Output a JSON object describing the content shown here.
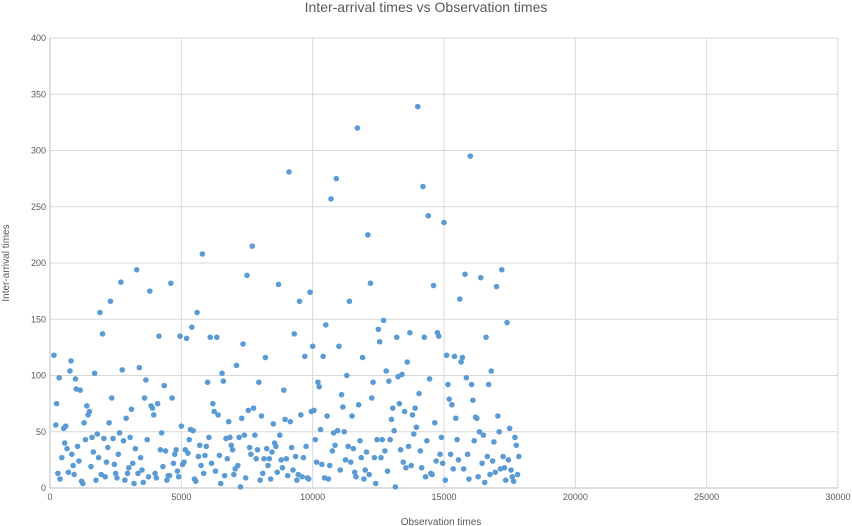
{
  "chart_data": {
    "type": "scatter",
    "title": "Inter-arrival times vs Observation times",
    "xlabel": "Observation times",
    "ylabel": "Inter-arrival times",
    "xlim": [
      0,
      30000
    ],
    "ylim": [
      0,
      400
    ],
    "x_ticks": [
      0,
      5000,
      10000,
      15000,
      20000,
      25000,
      30000
    ],
    "y_ticks": [
      0,
      50,
      100,
      150,
      200,
      250,
      300,
      350,
      400
    ],
    "grid": true,
    "legend": "none",
    "marker_color": "#5b9bd5",
    "points": [
      [
        150,
        118
      ],
      [
        220,
        56
      ],
      [
        250,
        75
      ],
      [
        300,
        13
      ],
      [
        350,
        98
      ],
      [
        380,
        8
      ],
      [
        450,
        27
      ],
      [
        520,
        53
      ],
      [
        560,
        40
      ],
      [
        600,
        55
      ],
      [
        650,
        35
      ],
      [
        700,
        14
      ],
      [
        760,
        104
      ],
      [
        800,
        113
      ],
      [
        830,
        30
      ],
      [
        880,
        20
      ],
      [
        920,
        12
      ],
      [
        970,
        97
      ],
      [
        1000,
        88
      ],
      [
        1050,
        37
      ],
      [
        1100,
        24
      ],
      [
        1150,
        87
      ],
      [
        1200,
        6
      ],
      [
        1250,
        4
      ],
      [
        1300,
        58
      ],
      [
        1350,
        43
      ],
      [
        1400,
        73
      ],
      [
        1450,
        65
      ],
      [
        1500,
        68
      ],
      [
        1560,
        19
      ],
      [
        1600,
        45
      ],
      [
        1650,
        32
      ],
      [
        1700,
        102
      ],
      [
        1750,
        7
      ],
      [
        1800,
        48
      ],
      [
        1850,
        27
      ],
      [
        1900,
        156
      ],
      [
        1950,
        12
      ],
      [
        2000,
        137
      ],
      [
        2050,
        44
      ],
      [
        2100,
        10
      ],
      [
        2150,
        23
      ],
      [
        2200,
        36
      ],
      [
        2250,
        58
      ],
      [
        2300,
        166
      ],
      [
        2350,
        80
      ],
      [
        2400,
        44
      ],
      [
        2450,
        21
      ],
      [
        2500,
        13
      ],
      [
        2550,
        9
      ],
      [
        2600,
        30
      ],
      [
        2650,
        49
      ],
      [
        2700,
        183
      ],
      [
        2750,
        105
      ],
      [
        2800,
        42
      ],
      [
        2850,
        7
      ],
      [
        2900,
        62
      ],
      [
        2950,
        13
      ],
      [
        3000,
        18
      ],
      [
        3050,
        45
      ],
      [
        3100,
        70
      ],
      [
        3150,
        22
      ],
      [
        3200,
        4
      ],
      [
        3250,
        35
      ],
      [
        3300,
        194
      ],
      [
        3350,
        13
      ],
      [
        3400,
        107
      ],
      [
        3450,
        27
      ],
      [
        3500,
        16
      ],
      [
        3550,
        5
      ],
      [
        3600,
        80
      ],
      [
        3650,
        96
      ],
      [
        3700,
        43
      ],
      [
        3750,
        10
      ],
      [
        3800,
        175
      ],
      [
        3850,
        73
      ],
      [
        3900,
        71
      ],
      [
        3950,
        65
      ],
      [
        4000,
        13
      ],
      [
        4050,
        9
      ],
      [
        4100,
        75
      ],
      [
        4150,
        135
      ],
      [
        4200,
        34
      ],
      [
        4250,
        49
      ],
      [
        4300,
        19
      ],
      [
        4350,
        91
      ],
      [
        4400,
        33
      ],
      [
        4450,
        7
      ],
      [
        4500,
        11
      ],
      [
        4550,
        11
      ],
      [
        4600,
        182
      ],
      [
        4650,
        80
      ],
      [
        4700,
        22
      ],
      [
        4750,
        30
      ],
      [
        4800,
        34
      ],
      [
        4850,
        15
      ],
      [
        4900,
        10
      ],
      [
        4950,
        135
      ],
      [
        5000,
        55
      ],
      [
        5050,
        21
      ],
      [
        5100,
        23
      ],
      [
        5150,
        34
      ],
      [
        5200,
        133
      ],
      [
        5250,
        31
      ],
      [
        5300,
        43
      ],
      [
        5350,
        52
      ],
      [
        5400,
        143
      ],
      [
        5450,
        51
      ],
      [
        5500,
        8
      ],
      [
        5550,
        6
      ],
      [
        5600,
        156
      ],
      [
        5650,
        28
      ],
      [
        5700,
        38
      ],
      [
        5750,
        20
      ],
      [
        5800,
        208
      ],
      [
        5850,
        13
      ],
      [
        5900,
        29
      ],
      [
        5950,
        37
      ],
      [
        6000,
        94
      ],
      [
        6050,
        45
      ],
      [
        6100,
        134
      ],
      [
        6150,
        22
      ],
      [
        6200,
        75
      ],
      [
        6250,
        68
      ],
      [
        6300,
        15
      ],
      [
        6350,
        134
      ],
      [
        6400,
        65
      ],
      [
        6450,
        29
      ],
      [
        6500,
        4
      ],
      [
        6550,
        102
      ],
      [
        6600,
        95
      ],
      [
        6650,
        11
      ],
      [
        6700,
        44
      ],
      [
        6750,
        26
      ],
      [
        6800,
        59
      ],
      [
        6850,
        45
      ],
      [
        6900,
        38
      ],
      [
        6950,
        34
      ],
      [
        7000,
        12
      ],
      [
        7050,
        17
      ],
      [
        7100,
        109
      ],
      [
        7150,
        20
      ],
      [
        7200,
        45
      ],
      [
        7250,
        1
      ],
      [
        7300,
        62
      ],
      [
        7350,
        128
      ],
      [
        7400,
        47
      ],
      [
        7450,
        9
      ],
      [
        7500,
        189
      ],
      [
        7550,
        69
      ],
      [
        7600,
        36
      ],
      [
        7650,
        30
      ],
      [
        7700,
        215
      ],
      [
        7750,
        71
      ],
      [
        7800,
        47
      ],
      [
        7850,
        26
      ],
      [
        7900,
        34
      ],
      [
        7950,
        94
      ],
      [
        8000,
        7
      ],
      [
        8050,
        64
      ],
      [
        8100,
        13
      ],
      [
        8150,
        26
      ],
      [
        8200,
        116
      ],
      [
        8250,
        35
      ],
      [
        8300,
        20
      ],
      [
        8350,
        26
      ],
      [
        8400,
        8
      ],
      [
        8450,
        32
      ],
      [
        8500,
        57
      ],
      [
        8550,
        40
      ],
      [
        8600,
        37
      ],
      [
        8650,
        14
      ],
      [
        8700,
        181
      ],
      [
        8750,
        47
      ],
      [
        8800,
        25
      ],
      [
        8850,
        18
      ],
      [
        8900,
        87
      ],
      [
        8950,
        61
      ],
      [
        9000,
        26
      ],
      [
        9050,
        11
      ],
      [
        9100,
        281
      ],
      [
        9150,
        59
      ],
      [
        9200,
        36
      ],
      [
        9250,
        16
      ],
      [
        9300,
        137
      ],
      [
        9350,
        28
      ],
      [
        9400,
        7
      ],
      [
        9450,
        12
      ],
      [
        9500,
        166
      ],
      [
        9550,
        65
      ],
      [
        9600,
        10
      ],
      [
        9650,
        27
      ],
      [
        9700,
        117
      ],
      [
        9750,
        37
      ],
      [
        9800,
        9
      ],
      [
        9850,
        8
      ],
      [
        9900,
        174
      ],
      [
        9950,
        68
      ],
      [
        10000,
        126
      ],
      [
        10050,
        69
      ],
      [
        10100,
        43
      ],
      [
        10150,
        23
      ],
      [
        10200,
        94
      ],
      [
        10250,
        90
      ],
      [
        10300,
        52
      ],
      [
        10350,
        21
      ],
      [
        10400,
        117
      ],
      [
        10450,
        9
      ],
      [
        10500,
        145
      ],
      [
        10550,
        64
      ],
      [
        10600,
        8
      ],
      [
        10650,
        20
      ],
      [
        10700,
        257
      ],
      [
        10750,
        33
      ],
      [
        10800,
        49
      ],
      [
        10850,
        38
      ],
      [
        10900,
        275
      ],
      [
        10950,
        51
      ],
      [
        11000,
        126
      ],
      [
        11050,
        16
      ],
      [
        11100,
        83
      ],
      [
        11150,
        72
      ],
      [
        11200,
        50
      ],
      [
        11250,
        25
      ],
      [
        11300,
        100
      ],
      [
        11350,
        37
      ],
      [
        11400,
        166
      ],
      [
        11450,
        23
      ],
      [
        11500,
        64
      ],
      [
        11550,
        35
      ],
      [
        11600,
        14
      ],
      [
        11650,
        10
      ],
      [
        11700,
        320
      ],
      [
        11750,
        74
      ],
      [
        11800,
        42
      ],
      [
        11850,
        27
      ],
      [
        11900,
        116
      ],
      [
        11950,
        8
      ],
      [
        12000,
        16
      ],
      [
        12050,
        32
      ],
      [
        12100,
        225
      ],
      [
        12150,
        12
      ],
      [
        12200,
        182
      ],
      [
        12250,
        80
      ],
      [
        12300,
        94
      ],
      [
        12350,
        27
      ],
      [
        12400,
        4
      ],
      [
        12450,
        43
      ],
      [
        12500,
        141
      ],
      [
        12550,
        130
      ],
      [
        12600,
        27
      ],
      [
        12650,
        43
      ],
      [
        12700,
        149
      ],
      [
        12750,
        33
      ],
      [
        12800,
        104
      ],
      [
        12850,
        15
      ],
      [
        12900,
        95
      ],
      [
        12950,
        43
      ],
      [
        13000,
        61
      ],
      [
        13050,
        71
      ],
      [
        13100,
        51
      ],
      [
        13150,
        1
      ],
      [
        13200,
        134
      ],
      [
        13250,
        99
      ],
      [
        13300,
        75
      ],
      [
        13350,
        34
      ],
      [
        13400,
        101
      ],
      [
        13450,
        23
      ],
      [
        13500,
        68
      ],
      [
        13550,
        18
      ],
      [
        13600,
        112
      ],
      [
        13650,
        37
      ],
      [
        13700,
        138
      ],
      [
        13750,
        20
      ],
      [
        13800,
        65
      ],
      [
        13850,
        48
      ],
      [
        13900,
        71
      ],
      [
        13950,
        54
      ],
      [
        14000,
        339
      ],
      [
        14050,
        84
      ],
      [
        14100,
        33
      ],
      [
        14150,
        18
      ],
      [
        14200,
        268
      ],
      [
        14250,
        134
      ],
      [
        14300,
        10
      ],
      [
        14350,
        42
      ],
      [
        14400,
        242
      ],
      [
        14450,
        97
      ],
      [
        14500,
        13
      ],
      [
        14550,
        12
      ],
      [
        14600,
        180
      ],
      [
        14650,
        58
      ],
      [
        14700,
        24
      ],
      [
        14750,
        138
      ],
      [
        14800,
        135
      ],
      [
        14850,
        30
      ],
      [
        14900,
        45
      ],
      [
        14950,
        22
      ],
      [
        15000,
        236
      ],
      [
        15050,
        7
      ],
      [
        15100,
        118
      ],
      [
        15150,
        92
      ],
      [
        15200,
        79
      ],
      [
        15250,
        30
      ],
      [
        15300,
        74
      ],
      [
        15350,
        17
      ],
      [
        15400,
        117
      ],
      [
        15450,
        62
      ],
      [
        15500,
        43
      ],
      [
        15550,
        25
      ],
      [
        15600,
        168
      ],
      [
        15650,
        112
      ],
      [
        15700,
        116
      ],
      [
        15750,
        17
      ],
      [
        15800,
        190
      ],
      [
        15850,
        98
      ],
      [
        15900,
        30
      ],
      [
        15950,
        8
      ],
      [
        16000,
        295
      ],
      [
        16050,
        92
      ],
      [
        16100,
        78
      ],
      [
        16150,
        42
      ],
      [
        16200,
        63
      ],
      [
        16250,
        62
      ],
      [
        16300,
        10
      ],
      [
        16350,
        50
      ],
      [
        16400,
        187
      ],
      [
        16450,
        22
      ],
      [
        16500,
        47
      ],
      [
        16550,
        5
      ],
      [
        16600,
        134
      ],
      [
        16650,
        28
      ],
      [
        16700,
        92
      ],
      [
        16750,
        12
      ],
      [
        16800,
        104
      ],
      [
        16850,
        24
      ],
      [
        16900,
        41
      ],
      [
        16950,
        14
      ],
      [
        17000,
        179
      ],
      [
        17050,
        64
      ],
      [
        17100,
        50
      ],
      [
        17150,
        17
      ],
      [
        17200,
        194
      ],
      [
        17250,
        28
      ],
      [
        17300,
        18
      ],
      [
        17350,
        7
      ],
      [
        17400,
        147
      ],
      [
        17450,
        25
      ],
      [
        17500,
        53
      ],
      [
        17550,
        16
      ],
      [
        17600,
        10
      ],
      [
        17650,
        6
      ],
      [
        17700,
        45
      ],
      [
        17750,
        38
      ],
      [
        17800,
        12
      ],
      [
        17850,
        28
      ]
    ]
  }
}
